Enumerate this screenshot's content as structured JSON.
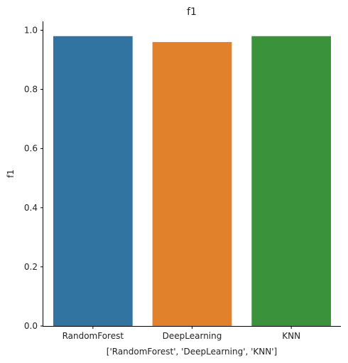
{
  "chart_data": {
    "type": "bar",
    "title": "f1",
    "xlabel": "['RandomForest', 'DeepLearning', 'KNN']",
    "ylabel": "f1",
    "categories": [
      "RandomForest",
      "DeepLearning",
      "KNN"
    ],
    "values": [
      0.98,
      0.96,
      0.98
    ],
    "colors": [
      "#3274a1",
      "#e1812c",
      "#3a923a"
    ],
    "ylim": [
      0,
      1.03
    ],
    "yticks": [
      0.0,
      0.2,
      0.4,
      0.6,
      0.8,
      1.0
    ],
    "ytick_labels": [
      "0.0",
      "0.2",
      "0.4",
      "0.6",
      "0.8",
      "1.0"
    ],
    "grid": false,
    "legend": "none"
  }
}
